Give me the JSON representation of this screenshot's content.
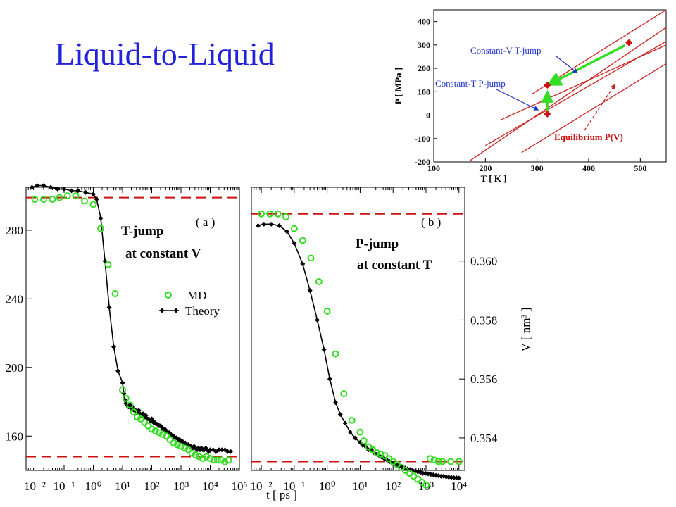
{
  "slide": {
    "title": "Liquid-to-Liquid"
  },
  "colors": {
    "md": "#33dd22",
    "theory": "#000000",
    "eq_line": "#cc1111",
    "inset_curve": "#cc2222",
    "arrow_green": "#33dd22",
    "annot_blue": "#2233cc",
    "title": "#2222dd"
  },
  "chart_data": [
    {
      "id": "inset",
      "type": "line",
      "xlabel": "T [ K ]",
      "ylabel": "P [ MPa ]",
      "xlim": [
        100,
        550
      ],
      "ylim": [
        -200,
        450
      ],
      "xticks": [
        "100",
        "200",
        "300",
        "400",
        "500"
      ],
      "yticks": [
        "-200",
        "-100",
        "0",
        "100",
        "200",
        "300",
        "400"
      ],
      "series": [
        {
          "x": [
            270,
            550
          ],
          "y": [
            -160,
            220
          ]
        },
        {
          "x": [
            230,
            550
          ],
          "y": [
            -20,
            300
          ]
        },
        {
          "x": [
            200,
            550
          ],
          "y": [
            -130,
            315
          ]
        },
        {
          "x": [
            170,
            550
          ],
          "y": [
            -195,
            375
          ]
        },
        {
          "x": [
            290,
            550
          ],
          "y": [
            90,
            450
          ]
        }
      ],
      "points": [
        {
          "x": 478,
          "y": 310
        },
        {
          "x": 320,
          "y": 128
        },
        {
          "x": 320,
          "y": 5
        }
      ],
      "annotations": {
        "const_v": "Constant-V T-jump",
        "const_t": "Constant-T P-jump",
        "equilibrium": "Equilibrium P(V)"
      }
    },
    {
      "id": "a",
      "type": "scatter+line",
      "panel_label": "( a )",
      "text1": "T-jump",
      "text2": "at constant V",
      "x_scale": "log",
      "xlim": [
        0.005,
        100000
      ],
      "ylim": [
        140,
        305
      ],
      "yticks": [
        160,
        200,
        240,
        280
      ],
      "x_tick_labels": [
        "10⁻²",
        "10⁻¹",
        "10⁰",
        "10¹",
        "10²",
        "10³",
        "10⁴",
        "10⁵"
      ],
      "hlines": [
        299,
        148
      ],
      "legend": {
        "md": "MD",
        "theory": "Theory"
      },
      "md": {
        "x": [
          0.01,
          0.02,
          0.04,
          0.07,
          0.13,
          0.25,
          0.5,
          1,
          1.8,
          3.2,
          5.6,
          10,
          13,
          18,
          24,
          32,
          42,
          56,
          75,
          100,
          133,
          178,
          237,
          316,
          422,
          562,
          750,
          1000,
          1330,
          1780,
          2370,
          3160,
          4220,
          5620,
          7500,
          10000,
          13300,
          17800,
          23700,
          31600,
          42200
        ],
        "y": [
          298,
          298,
          298,
          299,
          300,
          300,
          297,
          295,
          281,
          260,
          243,
          187,
          182,
          178,
          174,
          171,
          170,
          168,
          166,
          164,
          163,
          162,
          161,
          160,
          158,
          156,
          155,
          154,
          153,
          152,
          150,
          149,
          148,
          147,
          148,
          147,
          146,
          146,
          146,
          145,
          146
        ]
      },
      "theory": {
        "x": [
          0.008,
          0.012,
          0.02,
          0.035,
          0.06,
          0.1,
          0.18,
          0.3,
          0.55,
          1,
          1.3,
          1.8,
          2.5,
          3.5,
          5,
          7,
          10,
          11,
          12,
          13,
          14.5,
          16,
          18,
          20,
          22.5,
          25,
          28,
          32,
          36,
          40,
          45,
          50,
          56,
          63,
          71,
          80,
          90,
          100,
          113,
          126,
          142,
          160,
          178,
          200,
          225,
          251,
          283,
          316,
          355,
          400,
          450,
          500,
          560,
          630,
          710,
          800,
          900,
          1000,
          1120,
          1260,
          1410,
          1580,
          1780,
          2000,
          2240,
          2510,
          2820,
          3160,
          3550,
          3980,
          4470,
          5010,
          5620,
          6310,
          7080,
          7940,
          8910,
          10000,
          12600,
          15800,
          20000,
          25100,
          31600,
          39800,
          50000
        ],
        "y": [
          305,
          306,
          306,
          305,
          304,
          304,
          303,
          303,
          302,
          301,
          298,
          287,
          262,
          235,
          212,
          198,
          191,
          185,
          181,
          179,
          178,
          177,
          178,
          176,
          177,
          175,
          175,
          174,
          175,
          173,
          172,
          173,
          171,
          172,
          170,
          170,
          169,
          170,
          168,
          168,
          167,
          167,
          166,
          166,
          165,
          164,
          164,
          163,
          162,
          162,
          161,
          160,
          160,
          159,
          159,
          158,
          158,
          157,
          157,
          156,
          156,
          155,
          155,
          154,
          154,
          153,
          154,
          153,
          152,
          153,
          152,
          153,
          152,
          152,
          153,
          152,
          151,
          152,
          152,
          151,
          152,
          152,
          152,
          151,
          151
        ]
      }
    },
    {
      "id": "b",
      "type": "scatter+line",
      "panel_label": "( b )",
      "text1": "P-jump",
      "text2": "at constant T",
      "ylabel": "V [ nm³ ]",
      "x_scale": "log",
      "xlim": [
        0.005,
        15000
      ],
      "ylim": [
        0.3529,
        0.3625
      ],
      "yticks": [
        "0.354",
        "0.356",
        "0.358",
        "0.360"
      ],
      "x_tick_labels": [
        "10⁻²",
        "10⁻¹",
        "10⁰",
        "10¹",
        "10²",
        "10³",
        "10⁴"
      ],
      "xlabel": "t [ ps ]",
      "hlines": [
        0.3616,
        0.3532
      ],
      "md": {
        "x": [
          0.01,
          0.018,
          0.032,
          0.056,
          0.1,
          0.18,
          0.32,
          0.56,
          1,
          1.8,
          3.2,
          5.6,
          10,
          13,
          18,
          24,
          32,
          42,
          56,
          75,
          100,
          133,
          178,
          237,
          316,
          422,
          562,
          750,
          1000,
          1330,
          1780,
          2370,
          3160,
          5620,
          10000
        ],
        "y": [
          0.3616,
          0.3616,
          0.3616,
          0.3615,
          0.3611,
          0.3607,
          0.3601,
          0.3593,
          0.3583,
          0.35685,
          0.3555,
          0.3546,
          0.3542,
          0.3539,
          0.3537,
          0.3536,
          0.3535,
          0.35345,
          0.3534,
          0.3533,
          0.3532,
          0.3531,
          0.353,
          0.3529,
          0.3528,
          0.3527,
          0.3526,
          0.3525,
          0.3524,
          0.3533,
          0.35325,
          0.3532,
          0.3532,
          0.3532,
          0.3532
        ]
      },
      "theory": {
        "x": [
          0.008,
          0.012,
          0.02,
          0.035,
          0.06,
          0.1,
          0.18,
          0.3,
          0.5,
          0.8,
          1.2,
          1.8,
          2.5,
          3.5,
          5,
          7,
          10,
          12,
          15,
          18,
          22,
          26,
          32,
          38,
          45,
          54,
          65,
          78,
          93,
          112,
          134,
          160,
          192,
          230,
          275,
          330,
          395,
          473,
          566,
          678,
          812,
          972,
          1164,
          1394,
          1670,
          2000,
          2390,
          2860,
          3430,
          4100,
          4910,
          5880,
          7040,
          8430,
          10000
        ],
        "y": [
          0.3612,
          0.36125,
          0.36125,
          0.3612,
          0.361,
          0.3606,
          0.3599,
          0.359,
          0.358,
          0.357,
          0.356,
          0.3552,
          0.3548,
          0.3545,
          0.3542,
          0.354,
          0.35385,
          0.35375,
          0.3537,
          0.3536,
          0.3536,
          0.3535,
          0.35345,
          0.3534,
          0.35335,
          0.3533,
          0.35325,
          0.3532,
          0.35315,
          0.35312,
          0.35308,
          0.35305,
          0.353,
          0.35298,
          0.35295,
          0.35293,
          0.3529,
          0.35288,
          0.35285,
          0.35283,
          0.3528,
          0.3528,
          0.35278,
          0.35276,
          0.35275,
          0.35273,
          0.35272,
          0.3527,
          0.3527,
          0.35268,
          0.35267,
          0.35266,
          0.35265,
          0.35265,
          0.35264
        ]
      }
    }
  ]
}
